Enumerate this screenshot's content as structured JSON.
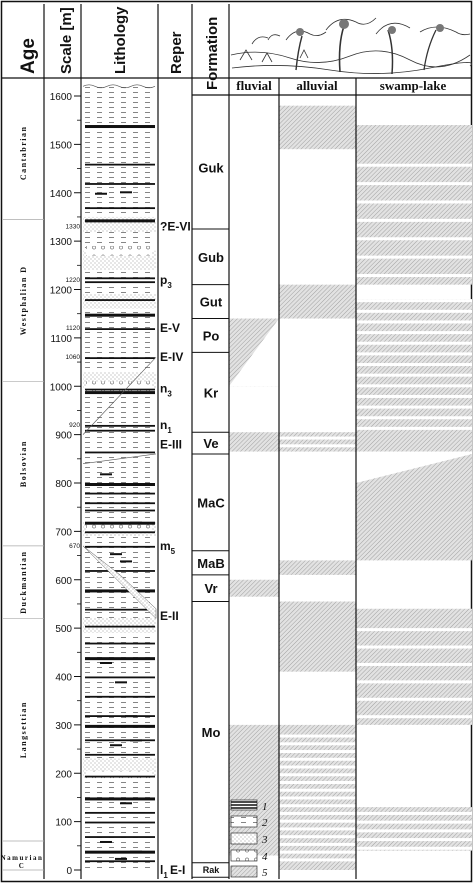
{
  "headers": {
    "age": "Age",
    "scale": "Scale [m]",
    "lithology": "Lithology",
    "reper": "Reper",
    "formation": "Formation"
  },
  "environments": [
    "fluvial",
    "alluvial",
    "swamp-lake"
  ],
  "stages": [
    {
      "name": "Cantabrian",
      "top": 1620,
      "bottom": 1345
    },
    {
      "name": "Westphalian D",
      "top": 1345,
      "bottom": 1010
    },
    {
      "name": "Bolsovian",
      "top": 1010,
      "bottom": 670
    },
    {
      "name": "Duckmantian",
      "top": 670,
      "bottom": 520
    },
    {
      "name": "Langsettian",
      "top": 520,
      "bottom": 60
    },
    {
      "name": "Namurian C",
      "top": 60,
      "bottom": 0
    }
  ],
  "scale_ticks": [
    0,
    100,
    200,
    300,
    400,
    500,
    600,
    700,
    800,
    900,
    1000,
    1100,
    1200,
    1300,
    1400,
    1500,
    1600
  ],
  "depth_markers": [
    {
      "label": "1330",
      "depth": 1330
    },
    {
      "label": "1220",
      "depth": 1220
    },
    {
      "label": "1120",
      "depth": 1120
    },
    {
      "label": "1060",
      "depth": 1060
    },
    {
      "label": "920",
      "depth": 920
    },
    {
      "label": "670",
      "depth": 670
    }
  ],
  "repers": [
    {
      "main": "?E-VI",
      "sub": "",
      "depth": 1330
    },
    {
      "main": "p",
      "sub": "3",
      "depth": 1220
    },
    {
      "main": "E-V",
      "sub": "",
      "depth": 1120
    },
    {
      "main": "E-IV",
      "sub": "",
      "depth": 1060
    },
    {
      "main": "n",
      "sub": "3",
      "depth": 995
    },
    {
      "main": "n",
      "sub": "1",
      "depth": 920
    },
    {
      "main": "E-III",
      "sub": "",
      "depth": 880
    },
    {
      "main": "m",
      "sub": "5",
      "depth": 670
    },
    {
      "main": "E-II",
      "sub": "",
      "depth": 525
    },
    {
      "main": "l",
      "sub": "1",
      "depth": 0
    },
    {
      "main": "E-I",
      "sub": "",
      "depth": 0
    }
  ],
  "formations": [
    {
      "name": "Guk",
      "top": 1580,
      "bottom": 1325
    },
    {
      "name": "Gub",
      "top": 1325,
      "bottom": 1210
    },
    {
      "name": "Gut",
      "top": 1210,
      "bottom": 1140
    },
    {
      "name": "Po",
      "top": 1140,
      "bottom": 1070
    },
    {
      "name": "Kr",
      "top": 1070,
      "bottom": 905
    },
    {
      "name": "Ve",
      "top": 905,
      "bottom": 860
    },
    {
      "name": "MaC",
      "top": 860,
      "bottom": 660
    },
    {
      "name": "MaB",
      "top": 660,
      "bottom": 610
    },
    {
      "name": "Vr",
      "top": 610,
      "bottom": 555
    },
    {
      "name": "Mo",
      "top": 555,
      "bottom": 15
    },
    {
      "name": "Rak",
      "top": 15,
      "bottom": -15
    }
  ],
  "legend": [
    "1",
    "2",
    "3",
    "4",
    "5"
  ]
}
